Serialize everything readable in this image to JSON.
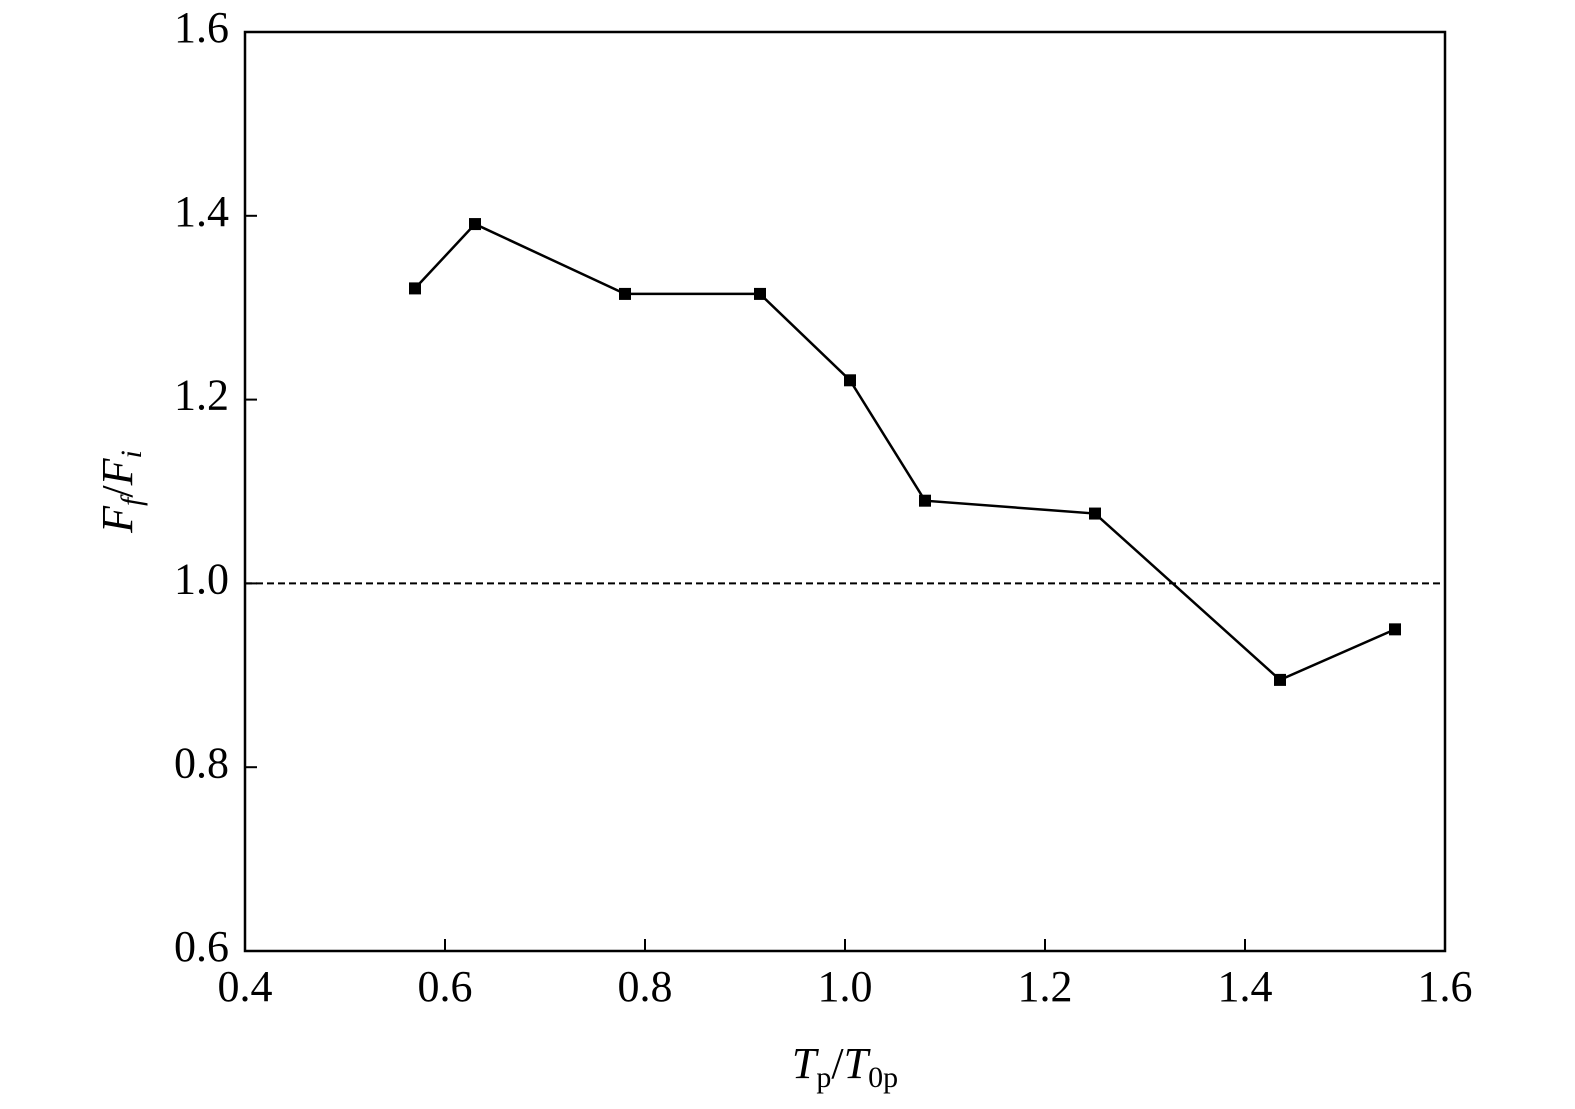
{
  "chart_data": {
    "type": "line",
    "xlabel": [
      {
        "text": "T",
        "style": "italic"
      },
      {
        "text": "p",
        "style": "sub"
      },
      {
        "text": "/",
        "style": "normal"
      },
      {
        "text": "T",
        "style": "italic"
      },
      {
        "text": "0p",
        "style": "sub"
      }
    ],
    "ylabel": [
      {
        "text": "F",
        "style": "italic"
      },
      {
        "text": "f",
        "style": "italic-sub"
      },
      {
        "text": "/",
        "style": "normal"
      },
      {
        "text": "F",
        "style": "italic"
      },
      {
        "text": "i",
        "style": "italic-sub"
      }
    ],
    "x": [
      0.57,
      0.63,
      0.78,
      0.915,
      1.005,
      1.08,
      1.25,
      1.435,
      1.55
    ],
    "series": [
      {
        "color": "#000000",
        "marker": "square",
        "values": [
          1.321,
          1.391,
          1.315,
          1.315,
          1.221,
          1.09,
          1.076,
          0.895,
          0.95
        ]
      }
    ],
    "reference_y": 1.0,
    "xlim": [
      0.4,
      1.6
    ],
    "ylim": [
      0.6,
      1.6
    ],
    "xticks": [
      0.4,
      0.6,
      0.8,
      {
        "value": 1,
        "label": "1.0"
      },
      1.2,
      1.4,
      1.6
    ],
    "yticks": [
      0.6,
      0.8,
      {
        "value": 1,
        "label": "1.0"
      },
      1.2,
      1.4,
      1.6
    ]
  }
}
